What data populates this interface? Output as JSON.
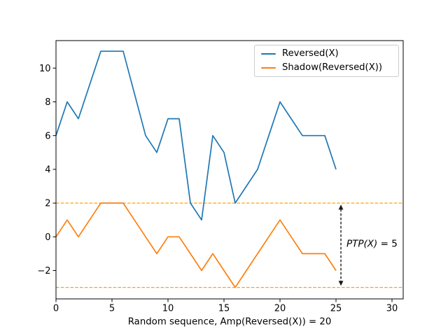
{
  "figure": {
    "background": "#ffffff",
    "frame_color": "#000000"
  },
  "chart_data": {
    "type": "line",
    "title": "",
    "xlabel": "Random sequence, Amp(Reversed(X)) = 20",
    "ylabel": "",
    "xlim": [
      0,
      31
    ],
    "ylim": [
      -3.68,
      11.63
    ],
    "grid": false,
    "x": [
      0,
      1,
      2,
      3,
      4,
      5,
      6,
      7,
      8,
      9,
      10,
      11,
      12,
      13,
      14,
      15,
      16,
      17,
      18,
      19,
      20,
      21,
      22,
      23,
      24,
      25
    ],
    "series": [
      {
        "name": "Reversed(X)",
        "color": "#1f77b4",
        "values": [
          6,
          8,
          7,
          9,
          11,
          11,
          11,
          8.5,
          6,
          5,
          7,
          7,
          2,
          1,
          6,
          5,
          2,
          3,
          4,
          6,
          8,
          7,
          6,
          6,
          6,
          4
        ]
      },
      {
        "name": "Shadow(Reversed(X))",
        "color": "#ff7f0e",
        "values": [
          0,
          1,
          0,
          1,
          2,
          2,
          2,
          1,
          0,
          -1,
          0,
          0,
          -1,
          -2,
          -1,
          -2,
          -3,
          -2,
          -1,
          0,
          1,
          0,
          -1,
          -1,
          -1,
          -2
        ]
      }
    ],
    "xticks": {
      "values": [
        0,
        5,
        10,
        15,
        20,
        25,
        30
      ],
      "labels": [
        "0",
        "5",
        "10",
        "15",
        "20",
        "25",
        "30"
      ]
    },
    "yticks": {
      "values": [
        10,
        8,
        6,
        4,
        2,
        0,
        -2
      ],
      "labels": [
        "10",
        "8",
        "6",
        "4",
        "2",
        "0",
        "−2"
      ]
    },
    "hlines": [
      {
        "y": 2,
        "color": "#ffa500",
        "linestyle": "dashed"
      },
      {
        "y": -3,
        "color": "#ffa500",
        "linestyle": "dashed"
      }
    ],
    "annotation": {
      "text": "PTP(X) = 5",
      "italic_part": "PTP(X)",
      "plain_part": " = 5",
      "arrow": {
        "x": 25.44,
        "y_from": 2,
        "y_to": -3,
        "color": "#1a1a1a",
        "linestyle": "dashed",
        "double_headed": true
      }
    },
    "legend": {
      "position": "upper right",
      "entries": [
        "Reversed(X)",
        "Shadow(Reversed(X))"
      ]
    }
  }
}
